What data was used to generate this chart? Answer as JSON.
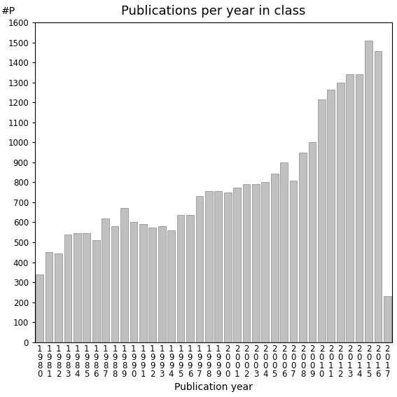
{
  "title": "Publications per year in class",
  "xlabel": "Publication year",
  "ylabel": "#P",
  "ylim": [
    0,
    1600
  ],
  "yticks": [
    0,
    100,
    200,
    300,
    400,
    500,
    600,
    700,
    800,
    900,
    1000,
    1100,
    1200,
    1300,
    1400,
    1500,
    1600
  ],
  "categories": [
    "1980",
    "1981",
    "1982",
    "1983",
    "1984",
    "1985",
    "1986",
    "1987",
    "1988",
    "1989",
    "1990",
    "1991",
    "1992",
    "1993",
    "1994",
    "1995",
    "1996",
    "1997",
    "1998",
    "1999",
    "2000",
    "2001",
    "2002",
    "2003",
    "2004",
    "2005",
    "2006",
    "2007",
    "2008",
    "2009",
    "2010",
    "2011",
    "2012",
    "2013",
    "2014",
    "2015",
    "2016",
    "2017"
  ],
  "values": [
    340,
    450,
    445,
    540,
    545,
    545,
    510,
    620,
    580,
    670,
    600,
    590,
    575,
    580,
    560,
    635,
    635,
    730,
    755,
    755,
    750,
    775,
    790,
    790,
    800,
    845,
    900,
    810,
    950,
    1000,
    1215,
    1265,
    1300,
    1340,
    1340,
    1510,
    1455,
    230
  ],
  "bar_color": "#c0c0c0",
  "bar_edge_color": "#888888",
  "bg_color": "#ffffff",
  "title_fontsize": 13,
  "label_fontsize": 10,
  "tick_fontsize": 8.5
}
